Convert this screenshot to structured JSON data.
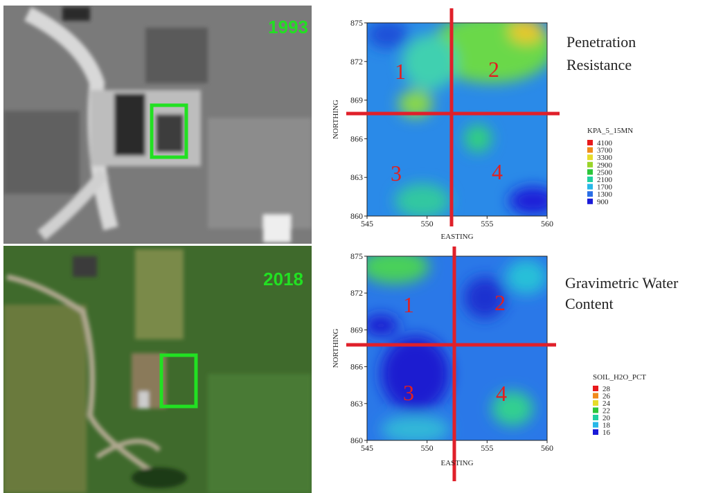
{
  "photos": [
    {
      "year": "1993"
    },
    {
      "year": "2018"
    }
  ],
  "maps": [
    {
      "title_lines": [
        "Penetration",
        "Resistance"
      ],
      "x_label": "EASTING",
      "y_label": "NORTHING",
      "xticks": [
        545,
        550,
        555,
        560
      ],
      "yticks": [
        860,
        863,
        866,
        869,
        872,
        875
      ],
      "quadrants": [
        "1",
        "2",
        "3",
        "4"
      ],
      "legend": {
        "title": "KPA_5_15MN",
        "items": [
          {
            "value": 4100,
            "color": "#e8191c"
          },
          {
            "value": 3700,
            "color": "#f08a1c"
          },
          {
            "value": 3300,
            "color": "#e6dc2a"
          },
          {
            "value": 2900,
            "color": "#9ad42a"
          },
          {
            "value": 2500,
            "color": "#2cc63a"
          },
          {
            "value": 2100,
            "color": "#20d0a0"
          },
          {
            "value": 1700,
            "color": "#28b8e8"
          },
          {
            "value": 1300,
            "color": "#2a6ee6"
          },
          {
            "value": 900,
            "color": "#1a1ad8"
          }
        ]
      }
    },
    {
      "title_lines": [
        "Gravimetric Water",
        "Content"
      ],
      "x_label": "EASTING",
      "y_label": "NORTHING",
      "xticks": [
        545,
        550,
        555,
        560
      ],
      "yticks": [
        860,
        863,
        866,
        869,
        872,
        875
      ],
      "quadrants": [
        "1",
        "2",
        "3",
        "4"
      ],
      "legend": {
        "title": "SOIL_H2O_PCT",
        "items": [
          {
            "value": 28,
            "color": "#e8191c"
          },
          {
            "value": 26,
            "color": "#f08a1c"
          },
          {
            "value": 24,
            "color": "#e6dc2a"
          },
          {
            "value": 22,
            "color": "#2cc63a"
          },
          {
            "value": 20,
            "color": "#20d0a0"
          },
          {
            "value": 18,
            "color": "#28b8e8"
          },
          {
            "value": 16,
            "color": "#1a1ad8"
          }
        ]
      }
    }
  ]
}
